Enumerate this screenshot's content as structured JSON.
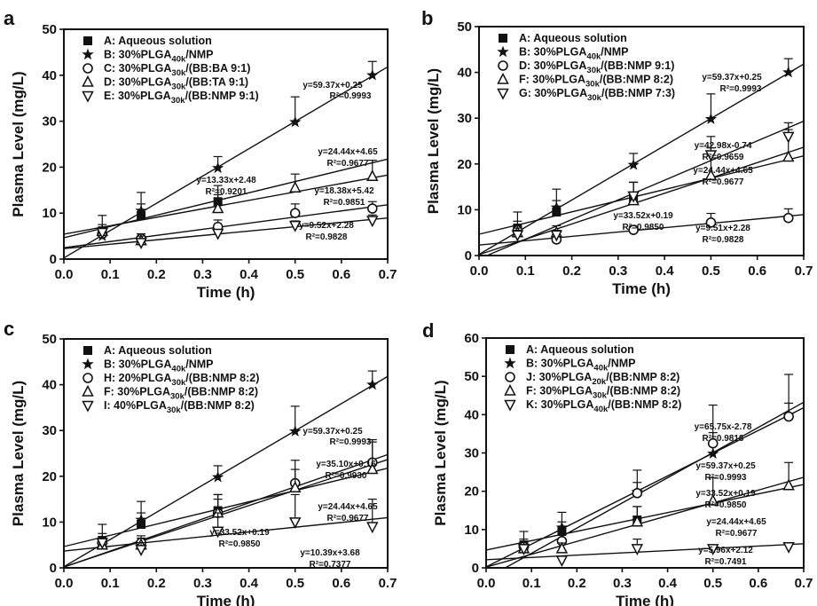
{
  "chart_data": [
    {
      "type": "scatter",
      "panel_label": "a",
      "xlabel": "Time (h)",
      "ylabel": "Plasma Level (mg/L)",
      "xlim": [
        0.0,
        0.7
      ],
      "ylim": [
        0,
        50
      ],
      "xticks": [
        "0.0",
        "0.1",
        "0.2",
        "0.3",
        "0.4",
        "0.5",
        "0.6",
        "0.7"
      ],
      "yticks": [
        "0",
        "10",
        "20",
        "30",
        "40",
        "50"
      ],
      "legend_position": "top-left",
      "series": [
        {
          "label_pre": "A: Aqueous solution",
          "label_sub": "",
          "label_post": "",
          "marker": "square",
          "x": [
            0.083,
            0.167,
            0.333
          ],
          "y": [
            6.0,
            9.5,
            12.5
          ],
          "err": [
            3.5,
            2.5,
            3.5
          ]
        },
        {
          "label_pre": "B: 30%PLGA",
          "label_sub": "40k",
          "label_post": "/NMP",
          "marker": "star",
          "x": [
            0.083,
            0.167,
            0.333,
            0.5,
            0.667
          ],
          "y": [
            5.0,
            10.5,
            19.8,
            29.8,
            40.0
          ],
          "err": [
            2.5,
            4.0,
            2.5,
            5.5,
            3.0
          ]
        },
        {
          "label_pre": "C: 30%PLGA",
          "label_sub": "30k",
          "label_post": "/(BB:BA 9:1)",
          "marker": "circle",
          "x": [
            0.083,
            0.167,
            0.333,
            0.5,
            0.667
          ],
          "y": [
            5.5,
            4.5,
            7.0,
            10.0,
            11.0
          ],
          "err": [
            1.0,
            1.0,
            1.5,
            2.0,
            1.5
          ]
        },
        {
          "label_pre": "D: 30%PLGA",
          "label_sub": "30k",
          "label_post": "/(BB:TA 9:1)",
          "marker": "triangle-up",
          "x": [
            0.083,
            0.167,
            0.333,
            0.5,
            0.667
          ],
          "y": [
            6.0,
            4.0,
            11.0,
            15.5,
            18.0
          ],
          "err": [
            1.0,
            1.0,
            3.0,
            3.0,
            3.5
          ]
        },
        {
          "label_pre": "E: 30%PLGA",
          "label_sub": "30k",
          "label_post": "/(BB:NMP 9:1)",
          "marker": "triangle-down",
          "x": [
            0.083,
            0.167,
            0.333,
            0.5,
            0.667
          ],
          "y": [
            5.8,
            3.6,
            5.6,
            7.3,
            8.4
          ],
          "err": [
            0.6,
            0.7,
            0.8,
            1.0,
            1.2
          ]
        }
      ],
      "fit_lines": [
        {
          "slope": 59.37,
          "intercept": 0.25,
          "equation": "y=59.37x+0.25",
          "r2": "R²=0.9993"
        },
        {
          "slope": 24.44,
          "intercept": 4.65,
          "equation": "y=24.44x+4.65",
          "r2": "R²=0.9677"
        },
        {
          "slope": 18.38,
          "intercept": 5.42,
          "equation": "y=18.38x+5.42",
          "r2": "R²=0.9851"
        },
        {
          "slope": 13.33,
          "intercept": 2.48,
          "equation": "y=13.33x+2.48",
          "r2": "R²=0.9201"
        },
        {
          "slope": 9.52,
          "intercept": 2.28,
          "equation": "y=9.52x+2.28",
          "r2": "R²=0.9828"
        }
      ]
    },
    {
      "type": "scatter",
      "panel_label": "b",
      "xlabel": "Time (h)",
      "ylabel": "Plasma Level (mg/L)",
      "xlim": [
        0.0,
        0.7
      ],
      "ylim": [
        0,
        50
      ],
      "xticks": [
        "0.0",
        "0.1",
        "0.2",
        "0.3",
        "0.4",
        "0.5",
        "0.6",
        "0.7"
      ],
      "yticks": [
        "0",
        "10",
        "20",
        "30",
        "40",
        "50"
      ],
      "legend_position": "top-left",
      "series": [
        {
          "label_pre": "A: Aqueous solution",
          "label_sub": "",
          "label_post": "",
          "marker": "square",
          "x": [
            0.083,
            0.167,
            0.333
          ],
          "y": [
            6.0,
            9.5,
            12.5
          ],
          "err": [
            3.5,
            2.5,
            3.5
          ]
        },
        {
          "label_pre": "B: 30%PLGA",
          "label_sub": "40k",
          "label_post": "/NMP",
          "marker": "star",
          "x": [
            0.083,
            0.167,
            0.333,
            0.5,
            0.667
          ],
          "y": [
            5.0,
            10.5,
            19.8,
            29.8,
            40.0
          ],
          "err": [
            2.5,
            4.0,
            2.5,
            5.5,
            3.0
          ]
        },
        {
          "label_pre": "D: 30%PLGA",
          "label_sub": "30k",
          "label_post": "/(BB:NMP 9:1)",
          "marker": "circle",
          "x": [
            0.083,
            0.167,
            0.333,
            0.5,
            0.667
          ],
          "y": [
            5.5,
            3.5,
            5.6,
            7.2,
            8.2
          ],
          "err": [
            0.6,
            0.7,
            0.8,
            2.0,
            2.0
          ]
        },
        {
          "label_pre": "F: 30%PLGA",
          "label_sub": "30k",
          "label_post": "/(BB:NMP 8:2)",
          "marker": "triangle-up",
          "x": [
            0.083,
            0.167,
            0.333,
            0.5,
            0.667
          ],
          "y": [
            5.0,
            5.0,
            12.0,
            17.5,
            21.5
          ],
          "err": [
            1.0,
            1.5,
            4.0,
            6.0,
            6.0
          ]
        },
        {
          "label_pre": "G: 30%PLGA",
          "label_sub": "30k",
          "label_post": "/(BB:NMP 7:3)",
          "marker": "triangle-down",
          "x": [
            0.083,
            0.167,
            0.333,
            0.5,
            0.667
          ],
          "y": [
            4.5,
            4.5,
            13.0,
            22.0,
            26.0
          ],
          "err": [
            1.0,
            1.0,
            3.0,
            4.0,
            3.0
          ]
        }
      ],
      "fit_lines": [
        {
          "slope": 59.37,
          "intercept": 0.25,
          "equation": "y=59.37x+0.25",
          "r2": "R²=0.9993"
        },
        {
          "slope": 42.98,
          "intercept": -0.74,
          "equation": "y=42.98x-0.74",
          "r2": "R²=0.9659"
        },
        {
          "slope": 33.52,
          "intercept": 0.19,
          "equation": "y=33.52x+0.19",
          "r2": "R²=0.9850"
        },
        {
          "slope": 24.44,
          "intercept": 4.65,
          "equation": "y=24.44x+4.65",
          "r2": "R²=0.9677"
        },
        {
          "slope": 9.51,
          "intercept": 2.28,
          "equation": "y=9.51x+2.28",
          "r2": "R²=0.9828"
        }
      ]
    },
    {
      "type": "scatter",
      "panel_label": "c",
      "xlabel": "Time (h)",
      "ylabel": "Plasma Level (mg/L)",
      "xlim": [
        0.0,
        0.7
      ],
      "ylim": [
        0,
        50
      ],
      "xticks": [
        "0.0",
        "0.1",
        "0.2",
        "0.3",
        "0.4",
        "0.5",
        "0.6",
        "0.7"
      ],
      "yticks": [
        "0",
        "10",
        "20",
        "30",
        "40",
        "50"
      ],
      "legend_position": "top-left",
      "series": [
        {
          "label_pre": "A: Aqueous solution",
          "label_sub": "",
          "label_post": "",
          "marker": "square",
          "x": [
            0.083,
            0.167,
            0.333
          ],
          "y": [
            6.0,
            9.5,
            12.5
          ],
          "err": [
            3.5,
            2.5,
            3.5
          ]
        },
        {
          "label_pre": "B: 30%PLGA",
          "label_sub": "40k",
          "label_post": "/NMP",
          "marker": "star",
          "x": [
            0.083,
            0.167,
            0.333,
            0.5,
            0.667
          ],
          "y": [
            5.0,
            10.5,
            19.8,
            29.8,
            40.0
          ],
          "err": [
            2.5,
            4.0,
            2.5,
            5.5,
            3.0
          ]
        },
        {
          "label_pre": "H: 20%PLGA",
          "label_sub": "30k",
          "label_post": "/(BB:NMP 8:2)",
          "marker": "circle",
          "x": [
            0.083,
            0.167,
            0.333,
            0.5,
            0.667
          ],
          "y": [
            5.5,
            5.5,
            12.0,
            18.5,
            23.0
          ],
          "err": [
            1.0,
            1.5,
            3.0,
            3.0,
            5.0
          ]
        },
        {
          "label_pre": "F: 30%PLGA",
          "label_sub": "30k",
          "label_post": "/(BB:NMP 8:2)",
          "marker": "triangle-up",
          "x": [
            0.083,
            0.167,
            0.333,
            0.5,
            0.667
          ],
          "y": [
            5.0,
            5.0,
            12.0,
            17.5,
            21.5
          ],
          "err": [
            1.0,
            1.5,
            4.0,
            6.0,
            6.0
          ]
        },
        {
          "label_pre": "I: 40%PLGA",
          "label_sub": "30k",
          "label_post": "/(BB:NMP 8:2)",
          "marker": "triangle-down",
          "x": [
            0.083,
            0.167,
            0.333,
            0.5,
            0.667
          ],
          "y": [
            5.5,
            4.0,
            8.0,
            10.0,
            9.0
          ],
          "err": [
            1.0,
            1.5,
            4.0,
            6.0,
            6.0
          ]
        }
      ],
      "fit_lines": [
        {
          "slope": 59.37,
          "intercept": 0.25,
          "equation": "y=59.37x+0.25",
          "r2": "R²=0.9993"
        },
        {
          "slope": 35.1,
          "intercept": 0.16,
          "equation": "y=35.10x+0.16",
          "r2": "R²=0.9930"
        },
        {
          "slope": 24.44,
          "intercept": 4.65,
          "equation": "y=24.44x+4.65",
          "r2": "R²=0.9677"
        },
        {
          "slope": 33.52,
          "intercept": 0.19,
          "equation": "y=33.52x+0.19",
          "r2": "R²=0.9850"
        },
        {
          "slope": 10.39,
          "intercept": 3.68,
          "equation": "y=10.39x+3.68",
          "r2": "R²=0.7377"
        }
      ]
    },
    {
      "type": "scatter",
      "panel_label": "d",
      "xlabel": "Time (h)",
      "ylabel": "Plasma Level (mg/L)",
      "xlim": [
        0.0,
        0.7
      ],
      "ylim": [
        0,
        60
      ],
      "xticks": [
        "0.0",
        "0.1",
        "0.2",
        "0.3",
        "0.4",
        "0.5",
        "0.6",
        "0.7"
      ],
      "yticks": [
        "0",
        "10",
        "20",
        "30",
        "40",
        "50",
        "60"
      ],
      "legend_position": "top-left",
      "series": [
        {
          "label_pre": "A: Aqueous solution",
          "label_sub": "",
          "label_post": "",
          "marker": "square",
          "x": [
            0.083,
            0.167,
            0.333
          ],
          "y": [
            6.0,
            9.5,
            12.5
          ],
          "err": [
            3.5,
            2.5,
            3.5
          ]
        },
        {
          "label_pre": "B: 30%PLGA",
          "label_sub": "40k",
          "label_post": "/NMP",
          "marker": "star",
          "x": [
            0.083,
            0.167,
            0.333,
            0.5,
            0.667
          ],
          "y": [
            5.0,
            10.5,
            19.8,
            29.8,
            40.0
          ],
          "err": [
            2.5,
            4.0,
            2.5,
            5.5,
            3.0
          ]
        },
        {
          "label_pre": "J: 30%PLGA",
          "label_sub": "20k",
          "label_post": "/(BB:NMP 8:2)",
          "marker": "circle",
          "x": [
            0.083,
            0.167,
            0.333,
            0.5,
            0.667
          ],
          "y": [
            5.5,
            7.0,
            19.5,
            32.5,
            39.5
          ],
          "err": [
            1.0,
            3.0,
            6.0,
            10.0,
            11.0
          ]
        },
        {
          "label_pre": "F: 30%PLGA",
          "label_sub": "30k",
          "label_post": "/(BB:NMP 8:2)",
          "marker": "triangle-up",
          "x": [
            0.083,
            0.167,
            0.333,
            0.5,
            0.667
          ],
          "y": [
            5.0,
            5.0,
            12.0,
            17.5,
            21.5
          ],
          "err": [
            1.0,
            1.5,
            4.0,
            6.0,
            6.0
          ]
        },
        {
          "label_pre": "K: 30%PLGA",
          "label_sub": "40k",
          "label_post": "/(BB:NMP 8:2)",
          "marker": "triangle-down",
          "x": [
            0.083,
            0.167,
            0.333,
            0.5,
            0.667
          ],
          "y": [
            5.0,
            2.0,
            5.0,
            5.0,
            5.5
          ],
          "err": [
            1.0,
            1.0,
            2.5,
            1.0,
            1.0
          ]
        }
      ],
      "fit_lines": [
        {
          "slope": 65.75,
          "intercept": -2.78,
          "equation": "y=65.75x-2.78",
          "r2": "R²=0.9818"
        },
        {
          "slope": 59.37,
          "intercept": 0.25,
          "equation": "y=59.37x+0.25",
          "r2": "R²=0.9993"
        },
        {
          "slope": 33.52,
          "intercept": 0.19,
          "equation": "y=33.52x+0.19",
          "r2": "R²=0.9850"
        },
        {
          "slope": 24.44,
          "intercept": 4.65,
          "equation": "y=24.44x+4.65",
          "r2": "R²=0.9677"
        },
        {
          "slope": 5.96,
          "intercept": 2.12,
          "equation": "y=5.96x+2.12",
          "r2": "R²=0.7491"
        }
      ]
    }
  ]
}
